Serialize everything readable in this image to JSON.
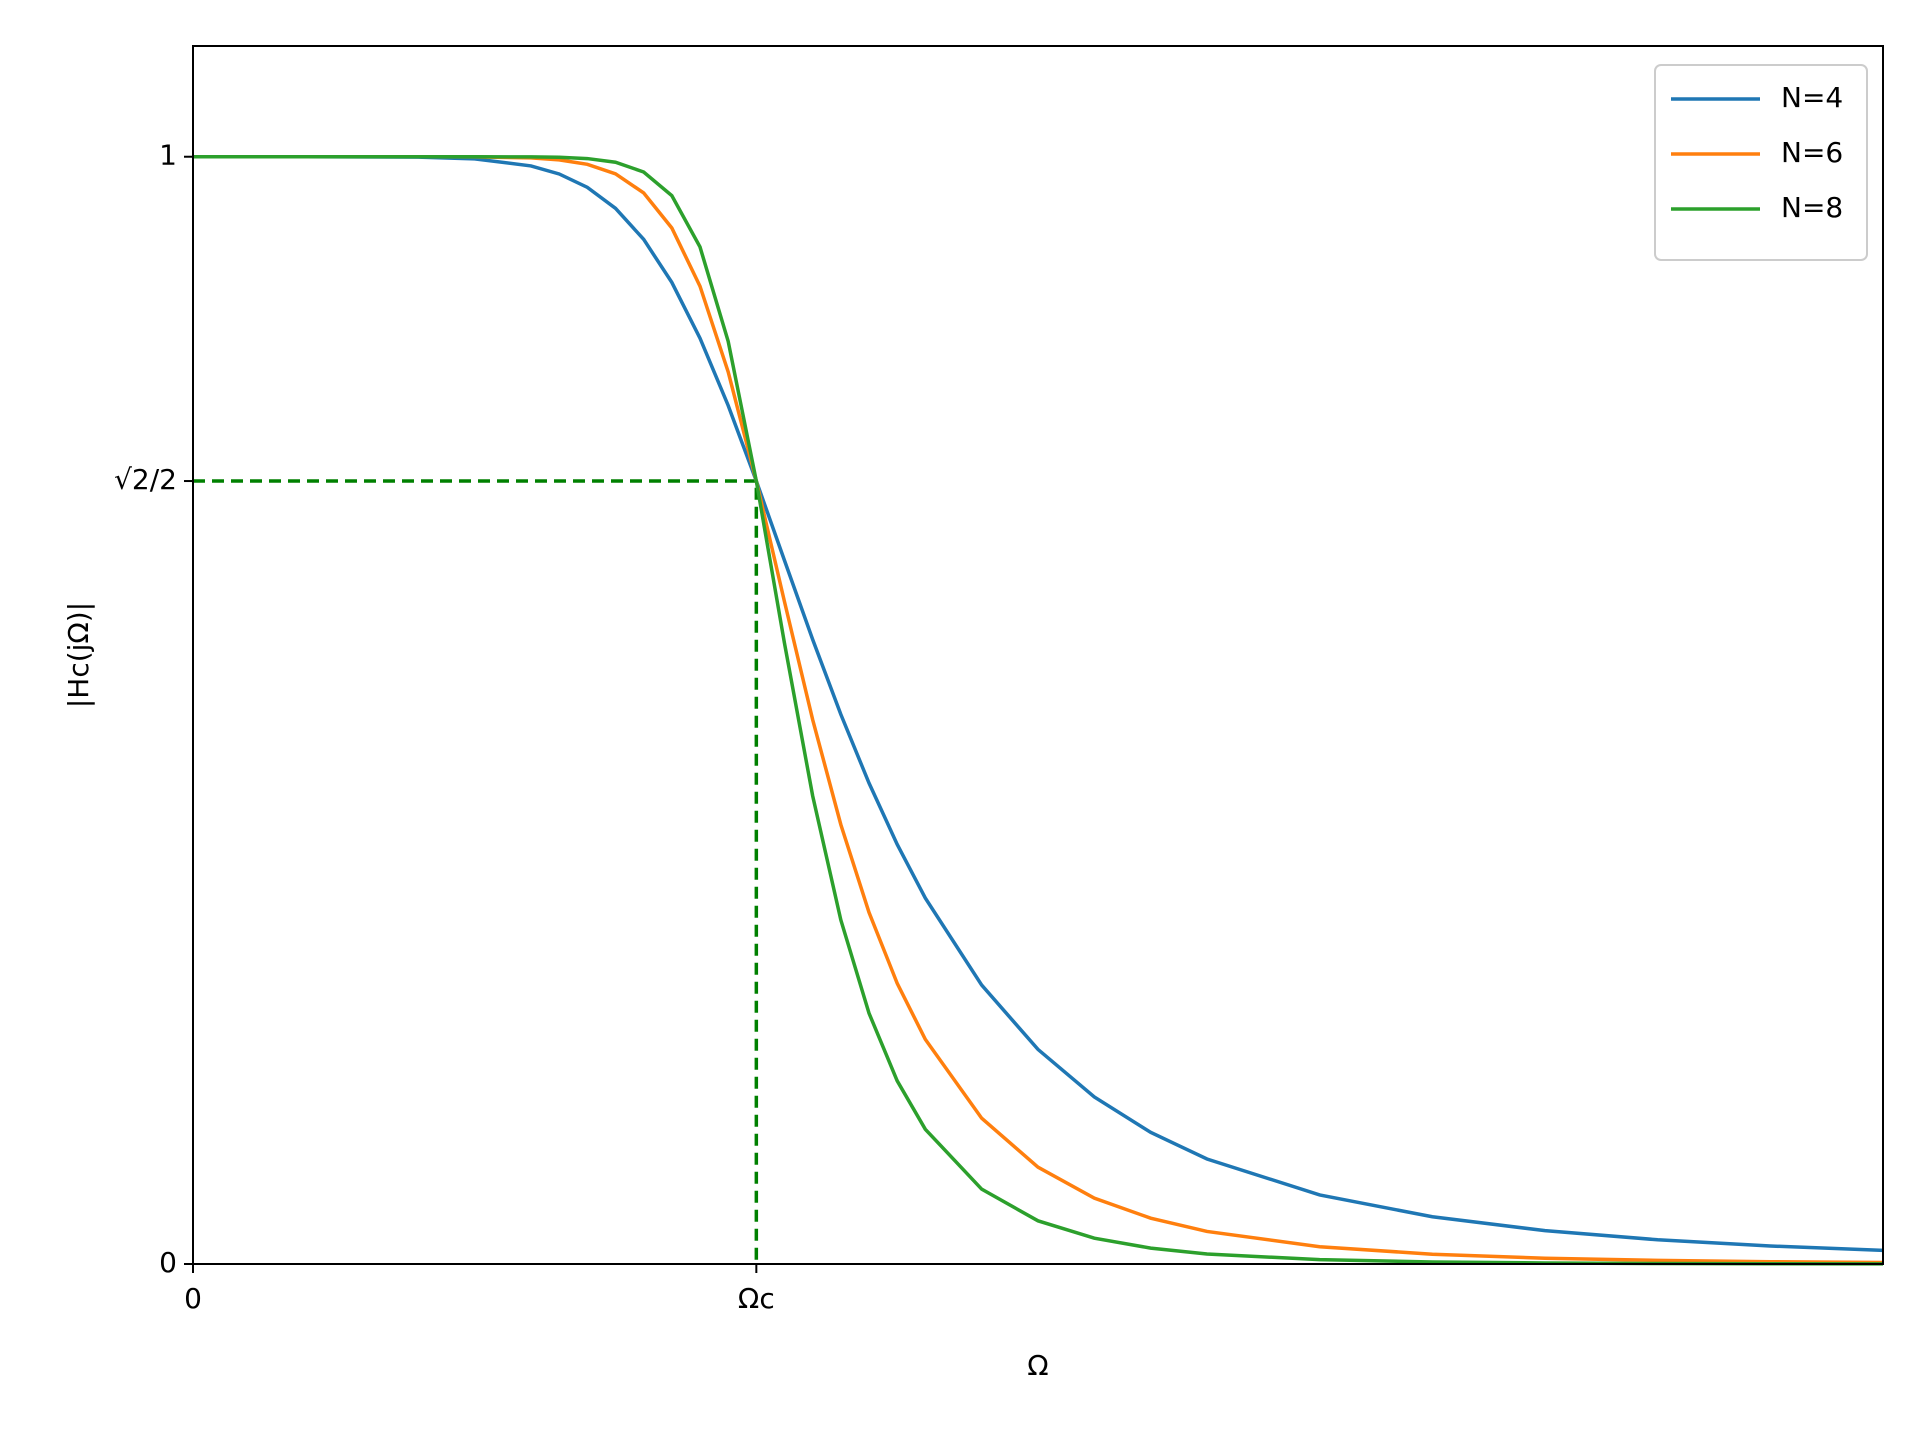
{
  "chart_data": {
    "type": "line",
    "xlabel": "Ω",
    "ylabel": "|Hc(jΩ)|",
    "x": [
      0,
      0.2,
      0.4,
      0.5,
      0.6,
      0.65,
      0.7,
      0.75,
      0.8,
      0.85,
      0.9,
      0.95,
      1,
      1.05,
      1.1,
      1.15,
      1.2,
      1.25,
      1.3,
      1.4,
      1.5,
      1.6,
      1.7,
      1.8,
      2,
      2.2,
      2.4,
      2.6,
      2.8,
      3
    ],
    "series": [
      {
        "name": "N=4",
        "color": "#1f77b4",
        "values": [
          1,
          1,
          0.99967,
          0.99805,
          0.99171,
          0.98444,
          0.97237,
          0.95341,
          0.92538,
          0.88648,
          0.83611,
          0.77536,
          0.70711,
          0.63533,
          0.56401,
          0.49635,
          0.43438,
          0.37904,
          0.33046,
          0.25191,
          0.19379,
          0.15084,
          0.11888,
          0.09483,
          0.06238,
          0.04265,
          0.03013,
          0.02188,
          0.01627,
          0.01234
        ]
      },
      {
        "name": "N=6",
        "color": "#ff7f0e",
        "values": [
          1,
          1,
          0.99999,
          0.99988,
          0.99891,
          0.99717,
          0.99316,
          0.98453,
          0.96732,
          0.93566,
          0.88304,
          0.80573,
          0.70711,
          0.59806,
          0.49157,
          0.39683,
          0.31757,
          0.25357,
          0.20287,
          0.13165,
          0.08746,
          0.0595,
          0.04139,
          0.02939,
          0.01562,
          0.00882,
          0.00523,
          0.00324,
          0.00208,
          0.00137
        ]
      },
      {
        "name": "N=8",
        "color": "#2ca02c",
        "values": [
          1,
          1,
          1,
          0.99999,
          0.99986,
          0.99949,
          0.99834,
          0.99503,
          0.98622,
          0.96482,
          0.91851,
          0.8333,
          0.70711,
          0.56052,
          0.42277,
          0.31072,
          0.22652,
          0.16546,
          0.12168,
          0.06761,
          0.03899,
          0.02328,
          0.01433,
          0.00907,
          0.00391,
          0.00182,
          0.00091,
          0.00048,
          0.00026,
          0.00015
        ]
      }
    ],
    "xlim": [
      0,
      3
    ],
    "ylim": [
      0,
      1.1
    ],
    "xticks": [
      0,
      {
        "value": 1,
        "label": "Ωc"
      }
    ],
    "yticks": [
      0,
      {
        "value": 0.70711,
        "label": "√2/2"
      },
      1
    ],
    "guide": {
      "x": 1,
      "y": 0.70711,
      "color": "#008000"
    },
    "grid": false,
    "legend": "upper right"
  }
}
